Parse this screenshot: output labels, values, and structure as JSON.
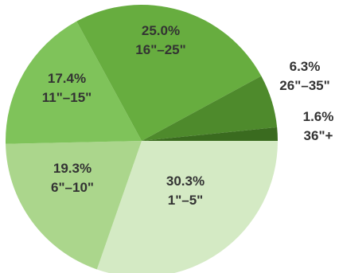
{
  "chart_data": {
    "type": "pie",
    "title": "",
    "categories": [
      "1\"–5\"",
      "6\"–10\"",
      "11\"–15\"",
      "16\"–25\"",
      "26\"–35\"",
      "36\"+"
    ],
    "values": [
      30.3,
      19.3,
      17.4,
      25.0,
      6.3,
      1.6
    ],
    "series": [
      {
        "values": [
          30.3,
          19.3,
          17.4,
          25.0,
          6.3,
          1.6
        ]
      }
    ],
    "slices": [
      {
        "category": "1\"–5\"",
        "value": 30.3,
        "pct_label": "30.3%",
        "cat_label": "1\"–5\"",
        "color": "#d4eac4"
      },
      {
        "category": "6\"–10\"",
        "value": 19.3,
        "pct_label": "19.3%",
        "cat_label": "6\"–10\"",
        "color": "#abd68c"
      },
      {
        "category": "11\"–15\"",
        "value": 17.4,
        "pct_label": "17.4%",
        "cat_label": "11\"–15\"",
        "color": "#7fc35a"
      },
      {
        "category": "16\"–25\"",
        "value": 25.0,
        "pct_label": "25.0%",
        "cat_label": "16\"–25\"",
        "color": "#67ad3f"
      },
      {
        "category": "26\"–35\"",
        "value": 6.3,
        "pct_label": "6.3%",
        "cat_label": "26\"–35\"",
        "color": "#4e8a2c"
      },
      {
        "category": "36\"+",
        "value": 1.6,
        "pct_label": "1.6%",
        "cat_label": "36\"+",
        "color": "#3a6b1f"
      }
    ],
    "label_placement": "inside for large slices, outside-right for small slices",
    "legend": "none",
    "start_angle": "east, clockwise",
    "label_color": "#333333"
  }
}
